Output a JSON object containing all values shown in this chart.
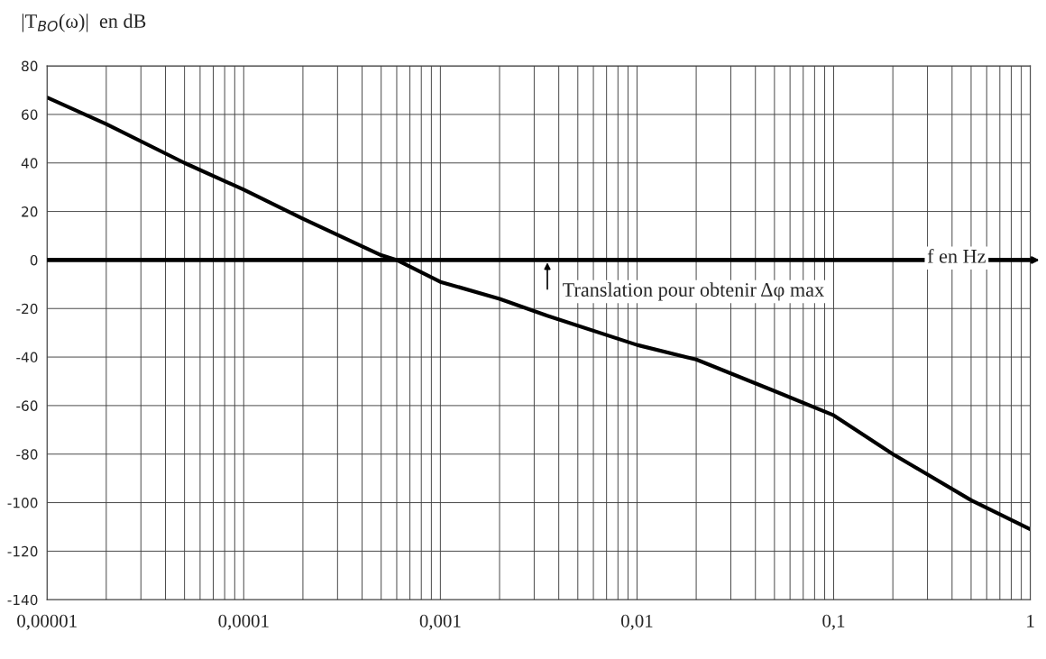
{
  "chart_data": {
    "type": "line",
    "ylabel": "|T$_{BO}$(ω)|  en dB",
    "xlabel": "f en Hz",
    "x": [
      1e-05,
      2e-05,
      5e-05,
      0.0001,
      0.0002,
      0.0005,
      0.0006,
      0.001,
      0.002,
      0.0035,
      0.01,
      0.02,
      0.05,
      0.1,
      0.2,
      0.5,
      1
    ],
    "series": [
      {
        "color": "#000000",
        "values": [
          67,
          56,
          40,
          29,
          17,
          2,
          0,
          -9,
          -16,
          -23,
          -35,
          -41,
          -54,
          -64,
          -80,
          -99,
          -111
        ]
      }
    ],
    "log": "x",
    "xlim": [
      1e-05,
      1
    ],
    "xticks": [
      {
        "value": 1e-05,
        "label": "0,00001"
      },
      {
        "value": 0.0001,
        "label": "0,0001"
      },
      {
        "value": 0.001,
        "label": "0,001"
      },
      {
        "value": 0.01,
        "label": "0,01"
      },
      {
        "value": 0.1,
        "label": "0,1"
      },
      1
    ],
    "ylim": [
      -140,
      80
    ],
    "yticks": [
      -140,
      -120,
      -100,
      -80,
      -60,
      -40,
      -20,
      0,
      20,
      40,
      60,
      80
    ],
    "grid": true,
    "ref_lines": [
      {
        "axis": "y",
        "value": 0,
        "color": "#000000"
      }
    ],
    "annotations": [
      {
        "text": "Translation pour obtenir Δφ max",
        "x": 0.0035,
        "y": 0
      }
    ]
  }
}
